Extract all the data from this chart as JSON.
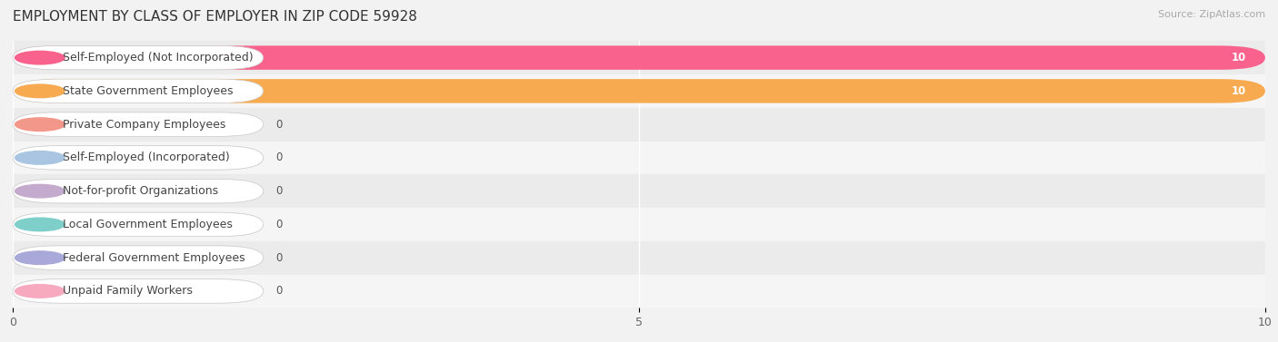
{
  "title": "EMPLOYMENT BY CLASS OF EMPLOYER IN ZIP CODE 59928",
  "source": "Source: ZipAtlas.com",
  "categories": [
    "Self-Employed (Not Incorporated)",
    "State Government Employees",
    "Private Company Employees",
    "Self-Employed (Incorporated)",
    "Not-for-profit Organizations",
    "Local Government Employees",
    "Federal Government Employees",
    "Unpaid Family Workers"
  ],
  "values": [
    10,
    10,
    0,
    0,
    0,
    0,
    0,
    0
  ],
  "bar_colors": [
    "#F8628C",
    "#F7AA50",
    "#F4978B",
    "#A9C5E1",
    "#C4ABCD",
    "#7ECFCA",
    "#A9A9D9",
    "#F7AABF"
  ],
  "zero_bar_colors": [
    "#F4978B",
    "#A9C5E1",
    "#C4ABCD",
    "#7ECFCA",
    "#A9A9D9",
    "#F7AABF"
  ],
  "xlim": [
    0,
    10
  ],
  "xticks": [
    0,
    5,
    10
  ],
  "background_color": "#f2f2f2",
  "row_bg_colors": [
    "#ebebeb",
    "#f5f5f5"
  ],
  "title_fontsize": 11,
  "label_fontsize": 9,
  "value_fontsize": 8.5
}
